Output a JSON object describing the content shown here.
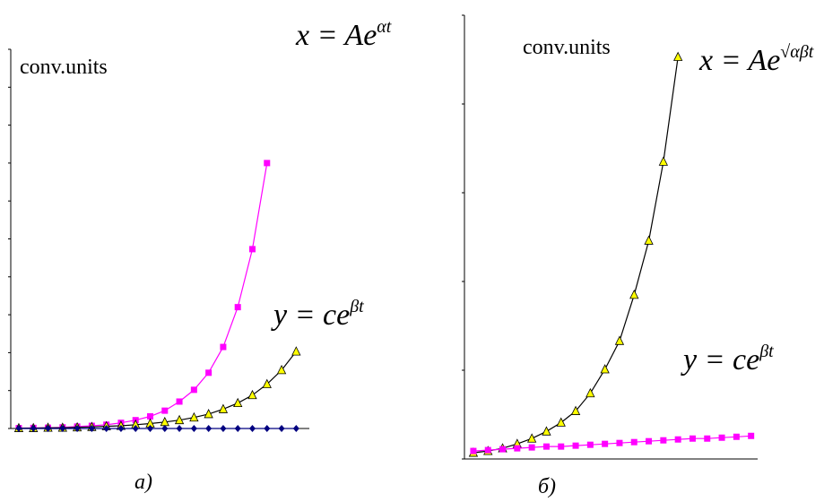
{
  "chart_data": [
    {
      "type": "line",
      "x": [
        0,
        1,
        2,
        3,
        4,
        5,
        6,
        7,
        8,
        9,
        10,
        11,
        12,
        13,
        14,
        15,
        16,
        17,
        18,
        19
      ],
      "xlim": [
        -0.55,
        19.9
      ],
      "ylim": [
        0,
        10
      ],
      "yticks": [
        0,
        1,
        2,
        3,
        4,
        5,
        6,
        7,
        8,
        9,
        10
      ],
      "axis_label": "conv.units",
      "caption": "a)",
      "annotations": [
        {
          "text": "x = Ae",
          "sup": "αt"
        },
        {
          "text": "y = ce",
          "sup": "βt"
        }
      ],
      "series": [
        {
          "color": "#ff00ff",
          "line_color": "#ff00ff",
          "marker": "square",
          "values": [
            0.01,
            0.015,
            0.02,
            0.03,
            0.05,
            0.07,
            0.1,
            0.15,
            0.22,
            0.32,
            0.47,
            0.71,
            1.02,
            1.47,
            2.15,
            3.2,
            4.73,
            7.0,
            null,
            null
          ]
        },
        {
          "color": "#ffff00",
          "line_color": "#000000",
          "marker": "triangle",
          "values": [
            0.01,
            0.01,
            0.02,
            0.02,
            0.03,
            0.04,
            0.06,
            0.07,
            0.1,
            0.13,
            0.17,
            0.22,
            0.29,
            0.38,
            0.51,
            0.67,
            0.88,
            1.17,
            1.54,
            2.03
          ]
        },
        {
          "color": "#000080",
          "line_color": "#000080",
          "marker": "diamond",
          "values": [
            0,
            0,
            0,
            0,
            0,
            0,
            0,
            0,
            0,
            0,
            0,
            0,
            0,
            0,
            0,
            0,
            0,
            0,
            0,
            0
          ]
        }
      ]
    },
    {
      "type": "line",
      "x": [
        0,
        1,
        2,
        3,
        4,
        5,
        6,
        7,
        8,
        9,
        10,
        11,
        12,
        13,
        14,
        15,
        16,
        17,
        18,
        19
      ],
      "xlim": [
        -0.61,
        19.45
      ],
      "ylim": [
        0,
        5
      ],
      "yticks": [
        0,
        1,
        2,
        3,
        4,
        5
      ],
      "axis_label": "conv.units",
      "caption": "б)",
      "annotations": [
        {
          "text": "x = Ae",
          "sup": "√αβt"
        },
        {
          "text": "y = ce",
          "sup": "βt"
        }
      ],
      "series": [
        {
          "color": "#ffff00",
          "line_color": "#000000",
          "marker": "triangle",
          "values": [
            0.07,
            0.09,
            0.12,
            0.17,
            0.23,
            0.31,
            0.41,
            0.54,
            0.74,
            1.01,
            1.33,
            1.85,
            2.46,
            3.35,
            4.53,
            null,
            null,
            null,
            null,
            null
          ]
        },
        {
          "color": "#ff00ff",
          "line_color": "#ff00ff",
          "marker": "square",
          "values": [
            0.09,
            0.1,
            0.11,
            0.12,
            0.13,
            0.14,
            0.14,
            0.15,
            0.16,
            0.17,
            0.18,
            0.19,
            0.2,
            0.21,
            0.22,
            0.23,
            0.23,
            0.24,
            0.25,
            0.26
          ]
        }
      ]
    }
  ]
}
